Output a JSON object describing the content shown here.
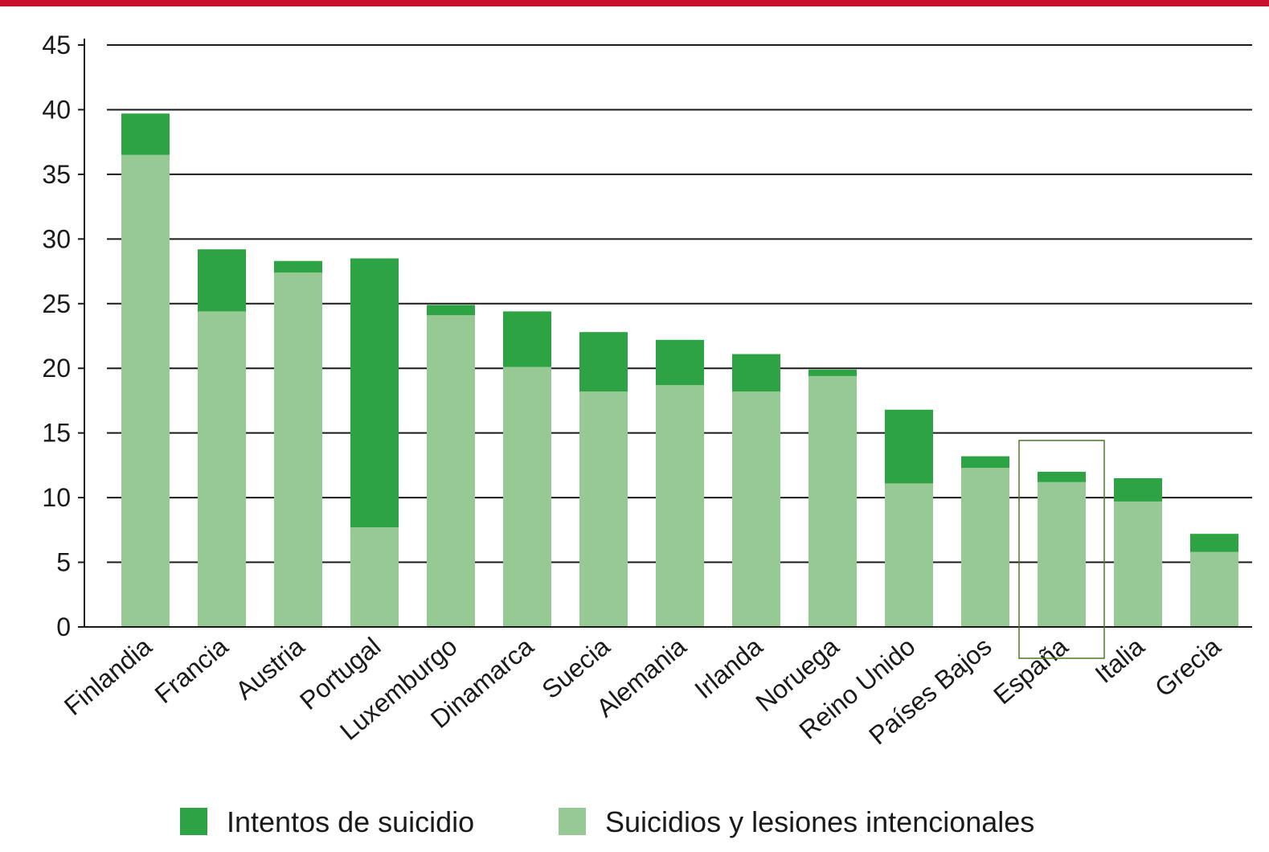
{
  "chart_data": {
    "type": "bar",
    "stacked": true,
    "categories": [
      "Finlandia",
      "Francia",
      "Austria",
      "Portugal",
      "Luxemburgo",
      "Dinamarca",
      "Suecia",
      "Alemania",
      "Irlanda",
      "Noruega",
      "Reino Unido",
      "Países Bajos",
      "España",
      "Italia",
      "Grecia"
    ],
    "series": [
      {
        "name": "Suicidios y lesiones intencionales",
        "color": "#97c994",
        "values": [
          36.5,
          24.4,
          27.4,
          7.7,
          24.1,
          20.1,
          18.2,
          18.7,
          18.2,
          19.4,
          11.1,
          12.3,
          11.2,
          9.7,
          5.8
        ]
      },
      {
        "name": "Intentos de suicidio",
        "color": "#2ea343",
        "values": [
          3.2,
          4.8,
          0.9,
          20.8,
          0.8,
          4.3,
          4.6,
          3.5,
          2.9,
          0.5,
          5.7,
          0.9,
          0.8,
          1.8,
          1.4
        ]
      }
    ],
    "legend_order": [
      "Intentos de suicidio",
      "Suicidios y lesiones intencionales"
    ],
    "ylim": [
      0,
      45
    ],
    "yticks": [
      0,
      5,
      10,
      15,
      20,
      25,
      30,
      35,
      40,
      45
    ],
    "grid": true,
    "legend_position": "bottom",
    "highlight_category": "España",
    "highlight_color": "#4a7a22",
    "accent_color": "#c8102e"
  }
}
